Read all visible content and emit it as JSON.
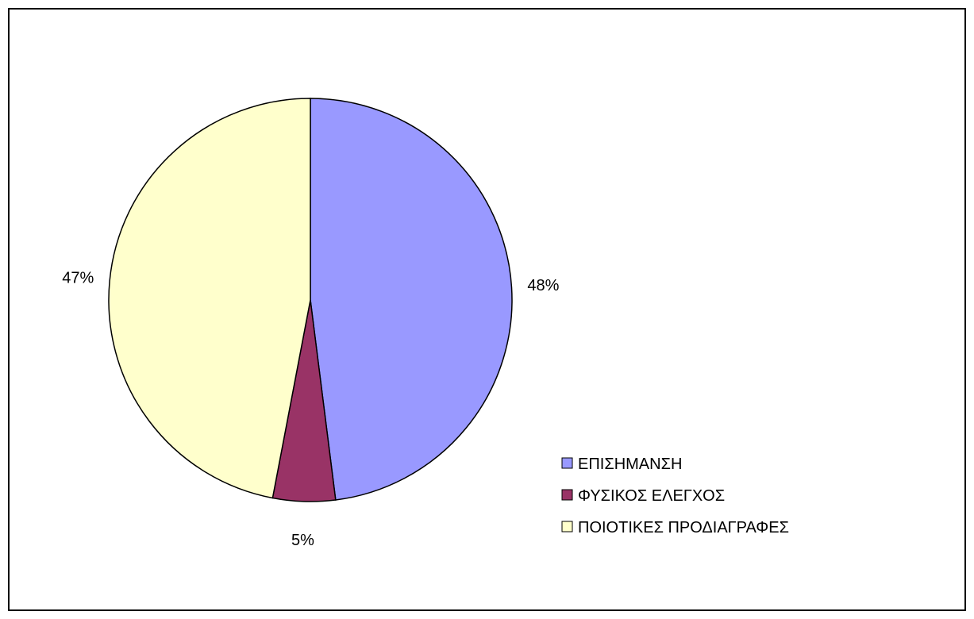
{
  "chart_data": {
    "type": "pie",
    "title": "",
    "categories": [
      "ΕΠΙΣΗΜΑΝΣΗ",
      "ΦΥΣΙΚΟΣ ΕΛΕΓΧΟΣ",
      "ΠΟΙΟΤΙΚΕΣ ΠΡΟΔΙΑΓΡΑΦΕΣ"
    ],
    "values": [
      48,
      5,
      47
    ],
    "data_labels": [
      "48%",
      "5%",
      "47%"
    ],
    "colors": [
      "#9999ff",
      "#993366",
      "#ffffcc"
    ],
    "legend_placement": "right"
  }
}
